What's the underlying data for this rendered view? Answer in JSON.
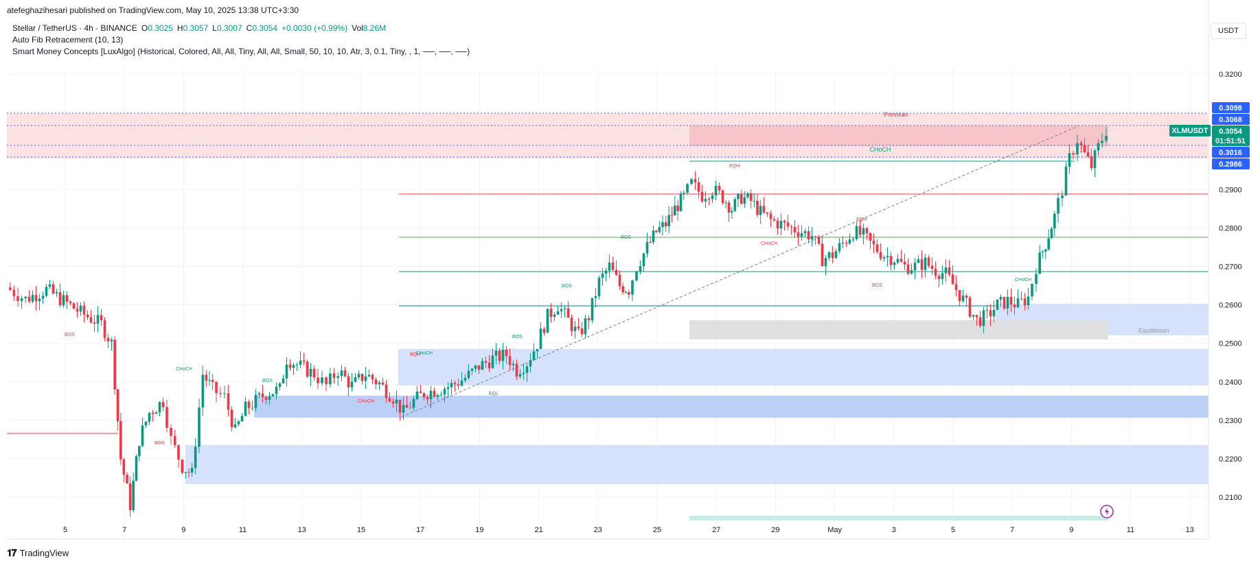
{
  "header": {
    "published_by": "atefeghazihesari published on TradingView.com, May 10, 2025 13:38 UTC+3:30"
  },
  "legend": {
    "symbol_line": "Stellar / TetherUS · 4h · BINANCE",
    "open_label": "O",
    "open": "0.3025",
    "high_label": "H",
    "high": "0.3057",
    "low_label": "L",
    "low": "0.3007",
    "close_label": "C",
    "close": "0.3054",
    "change": "+0.0030 (+0.99%)",
    "vol_label": "Vol",
    "vol": "8.26M",
    "indicator1": "Auto Fib Retracement (10, 13)",
    "indicator2": "Smart Money Concepts [LuxAlgo] (Historical, Colored, All, All, Tiny, All, All, Small, 50, 10, 10, Atr, 3, 0.1, Tiny, , 1, ──, ──, ──)"
  },
  "currency": "USDT",
  "price_axis": {
    "ticks": [
      "0.3200",
      "0.2900",
      "0.2800",
      "0.2700",
      "0.2600",
      "0.2500",
      "0.2400",
      "0.2300",
      "0.2200",
      "0.2100"
    ],
    "markers": [
      {
        "label": "0.3098",
        "color": "#2962ff"
      },
      {
        "label": "0.3068",
        "color": "#2962ff"
      },
      {
        "label": "0.3054",
        "color": "#089981"
      },
      {
        "label": "01:51:51",
        "color": "#089981"
      },
      {
        "label": "0.3016",
        "color": "#2962ff"
      },
      {
        "label": "0.2986",
        "color": "#2962ff"
      }
    ],
    "symbol_tag": "XLMUSDT"
  },
  "time_axis": [
    "5",
    "7",
    "9",
    "11",
    "13",
    "15",
    "17",
    "19",
    "21",
    "23",
    "25",
    "27",
    "29",
    "May",
    "3",
    "5",
    "7",
    "9",
    "11",
    "13"
  ],
  "annotations": {
    "premium": "Premium",
    "equilibrium": "Equilibrium",
    "choch_top": "CHoCH",
    "eqh1": "EQH",
    "eqh2": "EQH",
    "eql": "EQL",
    "bos": "BOS",
    "choch": "CHoCH"
  },
  "colors": {
    "up": "#089981",
    "down": "#f23645",
    "fib_blue": "#2962ff",
    "premium_zone": "#f7c5c9",
    "demand_zone": "#bbd0f7"
  },
  "footer": {
    "brand": "TradingView"
  }
}
